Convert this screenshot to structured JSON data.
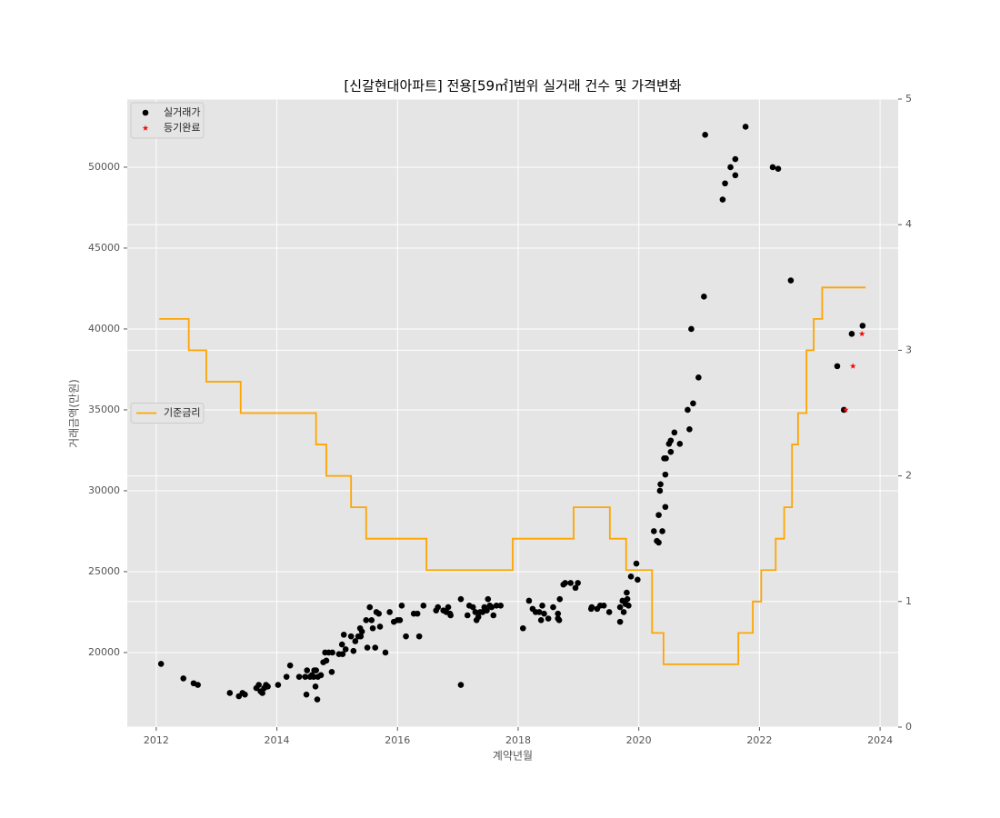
{
  "chart_data": {
    "type": "scatter",
    "title": "[신갈현대아파트] 전용[59㎡]범위 실거래 건수 및 가격변화",
    "xlabel": "계약년월",
    "ylabel": "거래금액(만원)",
    "xlim": [
      2011.52,
      2024.3
    ],
    "ylim": [
      15390,
      54210
    ],
    "y2lim": [
      0,
      5
    ],
    "xticks": [
      2012,
      2014,
      2016,
      2018,
      2020,
      2022,
      2024
    ],
    "yticks": [
      20000,
      25000,
      30000,
      35000,
      40000,
      45000,
      50000
    ],
    "y2ticks": [
      0,
      1,
      2,
      3,
      4,
      5
    ],
    "grid": true,
    "series": [
      {
        "name": "실거래가",
        "type": "scatter",
        "marker": "circle",
        "color": "#000000",
        "legend": "upper left",
        "x": [
          2012.08,
          2012.45,
          2012.62,
          2012.69,
          2013.22,
          2013.37,
          2013.43,
          2013.47,
          2013.66,
          2013.7,
          2013.73,
          2013.76,
          2013.79,
          2013.82,
          2013.85,
          2014.02,
          2014.16,
          2014.22,
          2014.37,
          2014.47,
          2014.49,
          2014.5,
          2014.55,
          2014.58,
          2014.61,
          2014.62,
          2014.64,
          2014.65,
          2014.67,
          2014.68,
          2014.73,
          2014.77,
          2014.8,
          2014.82,
          2014.86,
          2014.91,
          2014.92,
          2015.03,
          2015.08,
          2015.09,
          2015.11,
          2015.14,
          2015.23,
          2015.27,
          2015.3,
          2015.35,
          2015.38,
          2015.39,
          2015.41,
          2015.48,
          2015.5,
          2015.54,
          2015.57,
          2015.59,
          2015.63,
          2015.65,
          2015.69,
          2015.71,
          2015.8,
          2015.87,
          2015.94,
          2016.0,
          2016.04,
          2016.07,
          2016.14,
          2016.27,
          2016.33,
          2016.36,
          2016.43,
          2016.64,
          2016.67,
          2016.76,
          2016.81,
          2016.84,
          2016.87,
          2016.88,
          2017.05,
          2017.05,
          2017.16,
          2017.19,
          2017.25,
          2017.29,
          2017.31,
          2017.34,
          2017.37,
          2017.41,
          2017.44,
          2017.48,
          2017.5,
          2017.53,
          2017.56,
          2017.59,
          2017.64,
          2017.71,
          2018.08,
          2018.18,
          2018.24,
          2018.29,
          2018.35,
          2018.38,
          2018.4,
          2018.43,
          2018.5,
          2018.58,
          2018.66,
          2018.66,
          2018.68,
          2018.69,
          2018.75,
          2018.78,
          2018.87,
          2018.95,
          2018.99,
          2019.21,
          2019.22,
          2019.31,
          2019.36,
          2019.42,
          2019.51,
          2019.69,
          2019.69,
          2019.73,
          2019.75,
          2019.78,
          2019.8,
          2019.81,
          2019.83,
          2019.87,
          2019.96,
          2019.98,
          2020.25,
          2020.3,
          2020.33,
          2020.33,
          2020.35,
          2020.36,
          2020.39,
          2020.42,
          2020.44,
          2020.44,
          2020.45,
          2020.5,
          2020.53,
          2020.53,
          2020.59,
          2020.68,
          2020.81,
          2020.84,
          2020.87,
          2020.9,
          2020.99,
          2021.08,
          2021.1,
          2021.39,
          2021.43,
          2021.52,
          2021.6,
          2021.6,
          2021.77,
          2022.22,
          2022.31,
          2022.52,
          2023.29,
          2023.4,
          2023.53,
          2023.71
        ],
        "values": [
          19300,
          18400,
          18100,
          18000,
          17500,
          17300,
          17500,
          17400,
          17800,
          18000,
          17600,
          17500,
          17800,
          18000,
          17900,
          18000,
          18500,
          19200,
          18500,
          18500,
          17400,
          18900,
          18500,
          18600,
          18500,
          18900,
          17900,
          18900,
          17100,
          18500,
          18600,
          19400,
          20000,
          19500,
          20000,
          18800,
          20000,
          19900,
          20500,
          19900,
          21100,
          20200,
          21000,
          20100,
          20700,
          21000,
          21500,
          21000,
          21300,
          22000,
          20300,
          22800,
          22000,
          21500,
          20300,
          22500,
          22400,
          21600,
          20000,
          22500,
          21900,
          22000,
          22000,
          22900,
          21000,
          22400,
          22400,
          21000,
          22900,
          22600,
          22800,
          22600,
          22500,
          22800,
          22400,
          22300,
          23300,
          18000,
          22300,
          22900,
          22800,
          22500,
          22000,
          22200,
          22500,
          22500,
          22800,
          22600,
          23300,
          22900,
          22800,
          22300,
          22900,
          22900,
          21500,
          23200,
          22700,
          22500,
          22500,
          22000,
          22900,
          22400,
          22100,
          22800,
          22400,
          22100,
          22000,
          23300,
          24200,
          24300,
          24300,
          24000,
          24300,
          22700,
          22800,
          22700,
          22900,
          22900,
          22500,
          21900,
          22800,
          23200,
          22500,
          23000,
          23700,
          23300,
          22900,
          24700,
          25500,
          24500,
          27500,
          26900,
          26800,
          28500,
          30000,
          30400,
          27500,
          32000,
          31000,
          29000,
          32000,
          32900,
          33100,
          32400,
          33600,
          32900,
          35000,
          33800,
          40000,
          35400,
          37000,
          42000,
          52000,
          48000,
          49000,
          50000,
          50500,
          49500,
          52500,
          50000,
          49900,
          43000,
          37700,
          35000,
          39700,
          40200
        ]
      },
      {
        "name": "등기완료",
        "type": "scatter",
        "marker": "star",
        "color": "#ff0000",
        "legend": "upper left",
        "x": [
          2023.43,
          2023.55,
          2023.7
        ],
        "values": [
          35000,
          37700,
          39700
        ]
      },
      {
        "name": "기준금리",
        "type": "line",
        "step": "post",
        "color": "#ffa500",
        "axis": "y2",
        "legend": "center left",
        "x": [
          2012.05,
          2012.54,
          2012.83,
          2013.4,
          2014.65,
          2014.82,
          2015.23,
          2015.48,
          2016.48,
          2017.91,
          2018.92,
          2019.52,
          2019.79,
          2020.22,
          2020.41,
          2021.65,
          2021.89,
          2022.03,
          2022.27,
          2022.41,
          2022.54,
          2022.64,
          2022.78,
          2022.9,
          2023.04,
          2023.76
        ],
        "values": [
          3.25,
          3.0,
          2.75,
          2.5,
          2.25,
          2.0,
          1.75,
          1.5,
          1.25,
          1.5,
          1.75,
          1.5,
          1.25,
          0.75,
          0.5,
          0.75,
          1.0,
          1.25,
          1.5,
          1.75,
          2.25,
          2.5,
          3.0,
          3.25,
          3.5,
          3.5
        ]
      }
    ]
  }
}
